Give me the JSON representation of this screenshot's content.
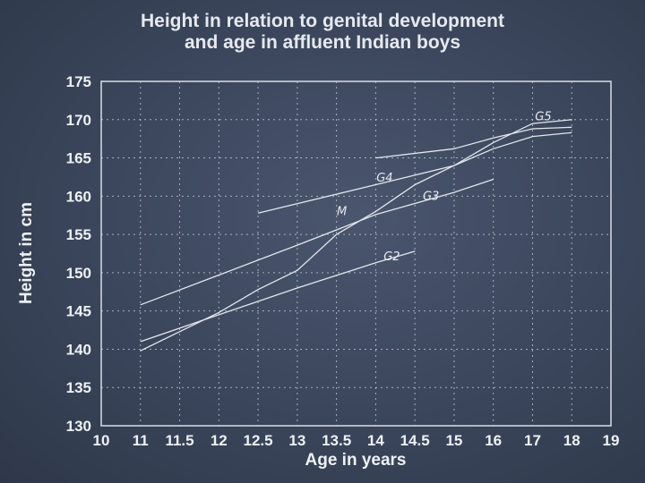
{
  "chart_data": {
    "type": "line",
    "title": [
      "Height in relation to genital development",
      "and age in affluent Indian boys"
    ],
    "xlabel": "Age in years",
    "ylabel": "Height in cm",
    "xlim": [
      10,
      19
    ],
    "ylim": [
      130,
      175
    ],
    "x_ticks": [
      10,
      11,
      11.5,
      12,
      12.5,
      13,
      13.5,
      14,
      14.5,
      15,
      16,
      17,
      18,
      19
    ],
    "x_tick_labels": [
      "10",
      "11",
      "11.5",
      "12",
      "12.5",
      "13",
      "13.5",
      "14",
      "14.5",
      "15",
      "16",
      "17",
      "18",
      "19"
    ],
    "y_ticks": [
      130,
      135,
      140,
      145,
      150,
      155,
      160,
      165,
      170,
      175
    ],
    "y_tick_labels": [
      "130",
      "135",
      "140",
      "145",
      "150",
      "155",
      "160",
      "165",
      "170",
      "175"
    ],
    "grid": true,
    "series": [
      {
        "name": "M",
        "x": [
          11,
          11.5,
          12,
          12.5,
          13,
          13.5,
          14,
          14.5,
          15,
          16,
          17,
          18
        ],
        "y": [
          139.8,
          142.3,
          144.8,
          147.8,
          150.3,
          155.0,
          158.0,
          161.5,
          164.0,
          167.0,
          169.5,
          170.0
        ]
      },
      {
        "name": "G2",
        "x": [
          11,
          12,
          13,
          14,
          14.5
        ],
        "y": [
          141.0,
          144.5,
          148.0,
          151.3,
          152.8
        ]
      },
      {
        "name": "G3",
        "x": [
          11,
          12,
          13,
          14,
          15,
          16
        ],
        "y": [
          145.8,
          149.7,
          153.6,
          157.6,
          160.5,
          162.2
        ]
      },
      {
        "name": "G4",
        "x": [
          12.5,
          14,
          15,
          16,
          17,
          18
        ],
        "y": [
          157.8,
          161.5,
          164.0,
          166.2,
          167.8,
          168.3
        ]
      },
      {
        "name": "G5",
        "x": [
          14,
          15,
          16,
          17,
          18
        ],
        "y": [
          165.0,
          166.2,
          167.6,
          168.8,
          169.0
        ]
      }
    ]
  }
}
